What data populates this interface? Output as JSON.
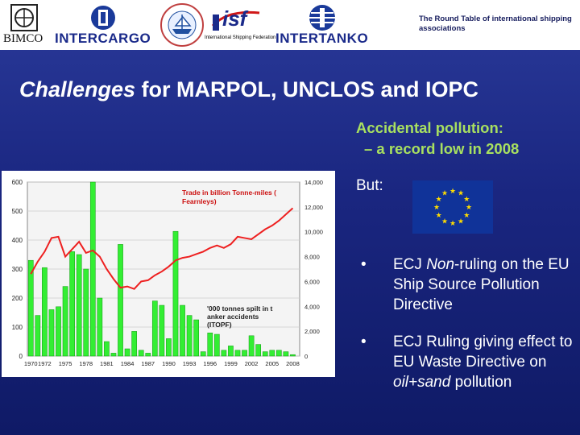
{
  "header": {
    "logos": [
      {
        "name": "BIMCO",
        "text": "BIMCO"
      },
      {
        "name": "INTERCARGO",
        "text": "INTERCARGO"
      },
      {
        "name": "International Chamber of Shipping",
        "text": "INTERNATIONAL CHAMBER OF SHIPPING"
      },
      {
        "name": "ISF",
        "text": "isf",
        "subtitle": "International Shipping Federation"
      },
      {
        "name": "INTERTANKO",
        "text": "INTERTANKO"
      }
    ],
    "round_table": "The Round Table of international shipping associations"
  },
  "title": {
    "italic": "Challenges",
    "rest": " for MARPOL, UNCLOS and IOPC"
  },
  "accidental": {
    "line1": "Accidental pollution:",
    "line2": "– a record low in 2008"
  },
  "but_label": "But:",
  "bullets": [
    {
      "symbol": "•",
      "pre": "ECJ ",
      "em": "Non",
      "post": "-ruling on the EU Ship Source Pollution Directive"
    },
    {
      "symbol": "•",
      "pre": "ECJ Ruling giving effect to EU Waste Directive on ",
      "em": "oil+sand",
      "post": " pollution"
    }
  ],
  "colors": {
    "bg_top": "#2a3a9a",
    "bg_bottom": "#0f1a66",
    "accent": "#a8e060",
    "bar": "#33ee33",
    "line": "#ee2020"
  },
  "chart_data": {
    "type": "bar",
    "categories": [
      "1970",
      "1972",
      "1975",
      "1978",
      "1981",
      "1984",
      "1987",
      "1990",
      "1993",
      "1996",
      "1999",
      "2002",
      "2005",
      "2008"
    ],
    "x_ticks": [
      "1970",
      "1972",
      "1975",
      "1978",
      "1981",
      "1984",
      "1987",
      "1990",
      "1993",
      "1996",
      "1999",
      "2002",
      "2005",
      "2008"
    ],
    "y_left": {
      "ticks": [
        "0",
        "100",
        "200",
        "300",
        "400",
        "500",
        "600"
      ],
      "lim": [
        0,
        600
      ]
    },
    "y_right": {
      "ticks": [
        "0",
        "2,000",
        "4,000",
        "6,000",
        "8,000",
        "10,000",
        "12,000",
        "14,000"
      ],
      "lim": [
        0,
        14000
      ]
    },
    "series": [
      {
        "name": "'000 tonnes spilt in tanker accidents (ITOPF)",
        "type": "bar",
        "x": [
          1970,
          1971,
          1972,
          1973,
          1974,
          1975,
          1976,
          1977,
          1978,
          1979,
          1980,
          1981,
          1982,
          1983,
          1984,
          1985,
          1986,
          1987,
          1988,
          1989,
          1990,
          1991,
          1992,
          1993,
          1994,
          1995,
          1996,
          1997,
          1998,
          1999,
          2000,
          2001,
          2002,
          2003,
          2004,
          2005,
          2006,
          2007,
          2008
        ],
        "values": [
          330,
          140,
          305,
          160,
          170,
          240,
          360,
          350,
          300,
          600,
          200,
          50,
          10,
          385,
          25,
          85,
          20,
          10,
          190,
          175,
          60,
          430,
          175,
          140,
          125,
          15,
          80,
          75,
          20,
          35,
          20,
          20,
          70,
          40,
          15,
          20,
          20,
          15,
          5
        ]
      },
      {
        "name": "Trade in billion Tonne-miles (Fearnleys)",
        "type": "line",
        "axis": "right",
        "x": [
          1970,
          1971,
          1972,
          1973,
          1974,
          1975,
          1976,
          1977,
          1978,
          1979,
          1980,
          1981,
          1982,
          1983,
          1984,
          1985,
          1986,
          1987,
          1988,
          1989,
          1990,
          1991,
          1992,
          1993,
          1994,
          1995,
          1996,
          1997,
          1998,
          1999,
          2000,
          2001,
          2002,
          2003,
          2004,
          2005,
          2006,
          2007,
          2008
        ],
        "values": [
          6600,
          7600,
          8400,
          9500,
          9600,
          8000,
          8600,
          9200,
          8300,
          8500,
          8000,
          7000,
          6200,
          5500,
          5600,
          5400,
          6000,
          6100,
          6500,
          6800,
          7200,
          7700,
          7900,
          8000,
          8200,
          8400,
          8700,
          8900,
          8700,
          9000,
          9600,
          9500,
          9400,
          9800,
          10200,
          10500,
          10900,
          11400,
          11900
        ]
      }
    ],
    "annotations": [
      "Trade in billion Tonne-miles (Fearnleys)",
      "'000 tonnes spilt in tanker accidents (ITOPF)"
    ],
    "legend": "none"
  }
}
